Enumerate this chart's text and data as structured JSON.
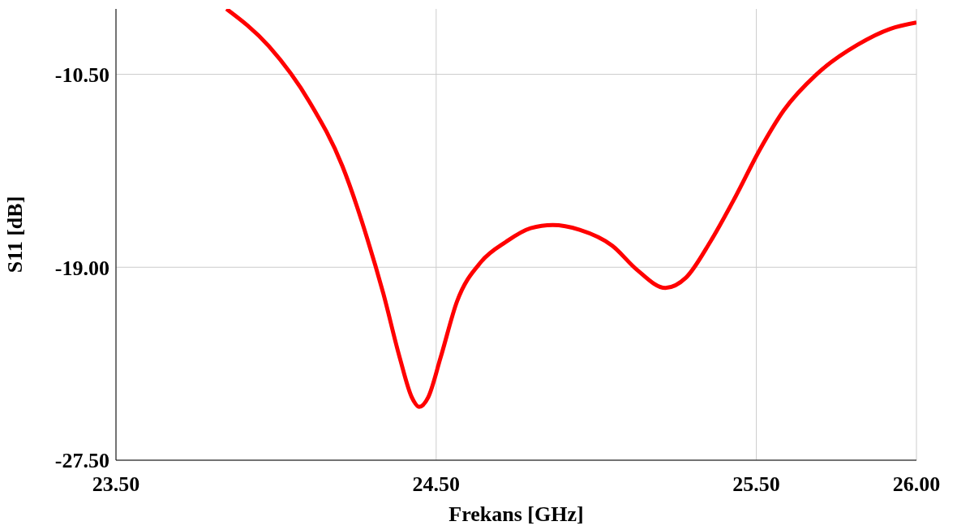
{
  "chart_data": {
    "type": "line",
    "xlabel": "Frekans [GHz]",
    "ylabel": "S11 [dB]",
    "x": [
      23.845,
      23.978,
      24.105,
      24.207,
      24.284,
      24.335,
      24.386,
      24.424,
      24.447,
      24.475,
      24.514,
      24.565,
      24.641,
      24.718,
      24.795,
      24.864,
      24.948,
      25.05,
      25.127,
      25.216,
      25.28,
      25.356,
      25.433,
      25.51,
      25.586,
      25.688,
      25.816,
      25.918,
      26.0
    ],
    "series": [
      {
        "color": "#ff0000",
        "values": [
          -7.62,
          -9.27,
          -11.73,
          -14.54,
          -17.7,
          -20.16,
          -22.97,
          -24.73,
          -25.15,
          -24.73,
          -22.97,
          -20.51,
          -18.75,
          -17.88,
          -17.28,
          -17.14,
          -17.35,
          -18.05,
          -19.11,
          -19.91,
          -19.46,
          -17.88,
          -15.94,
          -13.84,
          -12.08,
          -10.5,
          -9.2,
          -8.5,
          -8.22
        ]
      }
    ],
    "xlim": [
      23.5,
      26.0
    ],
    "xticks": [
      {
        "value": 23.5,
        "label": "23.50"
      },
      {
        "value": 24.5,
        "label": "24.50"
      },
      {
        "value": 25.5,
        "label": "25.50"
      },
      {
        "value": 26.0,
        "label": "26.00"
      }
    ],
    "ylim": [
      -27.5,
      -7.62
    ],
    "yticks": [
      {
        "value": -27.5,
        "label": "-27.50"
      },
      {
        "value": -19.0,
        "label": "-19.00"
      },
      {
        "value": -10.5,
        "label": "-10.50"
      }
    ],
    "grid": true
  }
}
